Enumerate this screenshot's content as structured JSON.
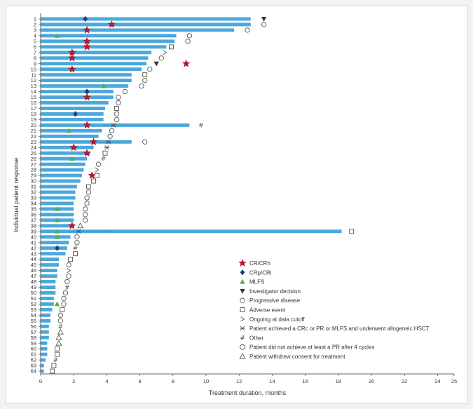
{
  "chart_data": {
    "type": "bar",
    "orientation": "horizontal",
    "xlabel": "Treatment duration, months",
    "ylabel": "Individual patient response",
    "xlim": [
      0,
      25
    ],
    "xticks": [
      0,
      2,
      4,
      6,
      8,
      10,
      12,
      14,
      16,
      18,
      20,
      22,
      24,
      25
    ],
    "patients": [
      "1",
      "2",
      "3",
      "4",
      "5",
      "6",
      "7",
      "8",
      "9",
      "10",
      "11",
      "12",
      "13",
      "14",
      "15",
      "16",
      "17",
      "18",
      "19",
      "20",
      "21",
      "22",
      "23",
      "24",
      "25",
      "26",
      "27",
      "28",
      "29",
      "30",
      "31",
      "32",
      "33",
      "34",
      "35",
      "36",
      "37",
      "38",
      "39",
      "40",
      "41",
      "42",
      "43",
      "44",
      "45",
      "46",
      "47",
      "48",
      "49",
      "50",
      "51",
      "52",
      "53",
      "54",
      "55",
      "56",
      "57",
      "58",
      "59",
      "60",
      "61",
      "62",
      "63",
      "64"
    ],
    "durations": [
      12.7,
      12.7,
      11.7,
      8.2,
      8.1,
      7.6,
      6.7,
      6.5,
      6.4,
      6.1,
      5.5,
      5.5,
      5.3,
      4.4,
      4.4,
      4.1,
      3.9,
      3.8,
      3.8,
      9.0,
      3.7,
      3.5,
      5.5,
      3.2,
      3.0,
      2.8,
      2.7,
      2.6,
      2.5,
      2.4,
      2.2,
      2.1,
      2.1,
      2.0,
      2.0,
      2.0,
      2.0,
      1.9,
      18.2,
      1.8,
      1.7,
      1.6,
      1.5,
      1.1,
      1.1,
      1.0,
      1.0,
      0.9,
      0.9,
      0.9,
      0.8,
      0.8,
      0.7,
      0.6,
      0.6,
      0.5,
      0.5,
      0.5,
      0.4,
      0.4,
      0.4,
      0.3,
      0.2,
      0.2
    ],
    "bar_color": "#4aa8dc",
    "hsct_extensions": [
      {
        "patient": 20,
        "from": 3.8,
        "to": 5.2
      },
      {
        "patient": 23,
        "from": 3.5,
        "to": 4.9
      },
      {
        "patient": 39,
        "from": 1.9,
        "to": 4.3
      }
    ],
    "markers": [
      {
        "patient": 1,
        "x": 2.7,
        "type": "crp_cri"
      },
      {
        "patient": 1,
        "x": 13.5,
        "type": "investigator_decision"
      },
      {
        "patient": 2,
        "x": 4.3,
        "type": "cr_crh"
      },
      {
        "patient": 2,
        "x": 13.5,
        "type": "progressive_disease"
      },
      {
        "patient": 3,
        "x": 2.8,
        "type": "cr_crh"
      },
      {
        "patient": 3,
        "x": 12.5,
        "type": "progressive_disease"
      },
      {
        "patient": 4,
        "x": 1.0,
        "type": "mlfs"
      },
      {
        "patient": 4,
        "x": 9.0,
        "type": "progressive_disease"
      },
      {
        "patient": 5,
        "x": 2.8,
        "type": "cr_crh"
      },
      {
        "patient": 5,
        "x": 8.9,
        "type": "progressive_disease"
      },
      {
        "patient": 6,
        "x": 2.8,
        "type": "cr_crh"
      },
      {
        "patient": 6,
        "x": 7.9,
        "type": "adverse_event"
      },
      {
        "patient": 7,
        "x": 1.9,
        "type": "cr_crh"
      },
      {
        "patient": 7,
        "x": 7.5,
        "type": "ongoing"
      },
      {
        "patient": 8,
        "x": 1.9,
        "type": "cr_crh"
      },
      {
        "patient": 8,
        "x": 7.3,
        "type": "progressive_disease"
      },
      {
        "patient": 9,
        "x": 8.8,
        "type": "cr_crh"
      },
      {
        "patient": 9,
        "x": 7.0,
        "type": "investigator_decision"
      },
      {
        "patient": 10,
        "x": 1.9,
        "type": "cr_crh"
      },
      {
        "patient": 10,
        "x": 6.6,
        "type": "progressive_disease"
      },
      {
        "patient": 11,
        "x": 6.3,
        "type": "adverse_event"
      },
      {
        "patient": 12,
        "x": 6.3,
        "type": "progressive_disease"
      },
      {
        "patient": 13,
        "x": 3.8,
        "type": "mlfs"
      },
      {
        "patient": 13,
        "x": 6.1,
        "type": "progressive_disease"
      },
      {
        "patient": 14,
        "x": 2.8,
        "type": "crp_cri"
      },
      {
        "patient": 14,
        "x": 5.1,
        "type": "progressive_disease"
      },
      {
        "patient": 15,
        "x": 2.8,
        "type": "cr_crh"
      },
      {
        "patient": 15,
        "x": 4.7,
        "type": "progressive_disease"
      },
      {
        "patient": 16,
        "x": 4.7,
        "type": "progressive_disease"
      },
      {
        "patient": 17,
        "x": 4.6,
        "type": "adverse_event"
      },
      {
        "patient": 18,
        "x": 2.1,
        "type": "crp_cri"
      },
      {
        "patient": 18,
        "x": 4.6,
        "type": "progressive_disease"
      },
      {
        "patient": 19,
        "x": 4.6,
        "type": "progressive_disease"
      },
      {
        "patient": 20,
        "x": 2.8,
        "type": "cr_crh"
      },
      {
        "patient": 20,
        "x": 4.4,
        "type": "hsct"
      },
      {
        "patient": 20,
        "x": 9.7,
        "type": "other"
      },
      {
        "patient": 21,
        "x": 1.7,
        "type": "mlfs"
      },
      {
        "patient": 21,
        "x": 4.3,
        "type": "progressive_disease"
      },
      {
        "patient": 22,
        "x": 4.2,
        "type": "progressive_disease"
      },
      {
        "patient": 23,
        "x": 3.2,
        "type": "cr_crh"
      },
      {
        "patient": 23,
        "x": 4.1,
        "type": "hsct"
      },
      {
        "patient": 23,
        "x": 6.3,
        "type": "progressive_disease"
      },
      {
        "patient": 24,
        "x": 2.0,
        "type": "cr_crh"
      },
      {
        "patient": 24,
        "x": 4.0,
        "type": "hsct"
      },
      {
        "patient": 25,
        "x": 2.8,
        "type": "cr_crh"
      },
      {
        "patient": 25,
        "x": 3.9,
        "type": "adverse_event"
      },
      {
        "patient": 26,
        "x": 1.9,
        "type": "mlfs"
      },
      {
        "patient": 26,
        "x": 3.8,
        "type": "other"
      },
      {
        "patient": 27,
        "x": 3.5,
        "type": "progressive_disease"
      },
      {
        "patient": 28,
        "x": 3.4,
        "type": "ongoing"
      },
      {
        "patient": 29,
        "x": 3.1,
        "type": "cr_crh"
      },
      {
        "patient": 29,
        "x": 3.4,
        "type": "adverse_event"
      },
      {
        "patient": 30,
        "x": 3.2,
        "type": "adverse_event"
      },
      {
        "patient": 31,
        "x": 2.9,
        "type": "adverse_event"
      },
      {
        "patient": 32,
        "x": 2.9,
        "type": "progressive_disease"
      },
      {
        "patient": 33,
        "x": 2.8,
        "type": "progressive_disease"
      },
      {
        "patient": 34,
        "x": 2.8,
        "type": "progressive_disease"
      },
      {
        "patient": 35,
        "x": 1.0,
        "type": "mlfs"
      },
      {
        "patient": 35,
        "x": 2.7,
        "type": "progressive_disease"
      },
      {
        "patient": 36,
        "x": 2.7,
        "type": "progressive_disease"
      },
      {
        "patient": 37,
        "x": 1.0,
        "type": "mlfs"
      },
      {
        "patient": 37,
        "x": 2.7,
        "type": "progressive_disease"
      },
      {
        "patient": 38,
        "x": 1.9,
        "type": "cr_crh"
      },
      {
        "patient": 38,
        "x": 2.4,
        "type": "withdrew_consent"
      },
      {
        "patient": 39,
        "x": 1.0,
        "type": "mlfs"
      },
      {
        "patient": 39,
        "x": 2.3,
        "type": "hsct"
      },
      {
        "patient": 39,
        "x": 18.8,
        "type": "adverse_event"
      },
      {
        "patient": 40,
        "x": 1.0,
        "type": "mlfs"
      },
      {
        "patient": 40,
        "x": 2.2,
        "type": "progressive_disease"
      },
      {
        "patient": 41,
        "x": 2.2,
        "type": "progressive_disease"
      },
      {
        "patient": 42,
        "x": 1.0,
        "type": "crp_cri"
      },
      {
        "patient": 42,
        "x": 2.1,
        "type": "other"
      },
      {
        "patient": 43,
        "x": 2.1,
        "type": "adverse_event"
      },
      {
        "patient": 44,
        "x": 1.8,
        "type": "adverse_event"
      },
      {
        "patient": 45,
        "x": 1.7,
        "type": "progressive_disease"
      },
      {
        "patient": 46,
        "x": 1.7,
        "type": "ongoing"
      },
      {
        "patient": 47,
        "x": 1.7,
        "type": "progressive_disease"
      },
      {
        "patient": 48,
        "x": 1.6,
        "type": "progressive_disease"
      },
      {
        "patient": 49,
        "x": 1.6,
        "type": "other"
      },
      {
        "patient": 50,
        "x": 1.5,
        "type": "progressive_disease"
      },
      {
        "patient": 51,
        "x": 1.4,
        "type": "progressive_disease"
      },
      {
        "patient": 52,
        "x": 1.0,
        "type": "mlfs"
      },
      {
        "patient": 52,
        "x": 1.4,
        "type": "progressive_disease"
      },
      {
        "patient": 53,
        "x": 1.3,
        "type": "adverse_event"
      },
      {
        "patient": 54,
        "x": 1.2,
        "type": "progressive_disease"
      },
      {
        "patient": 55,
        "x": 1.2,
        "type": "progressive_disease"
      },
      {
        "patient": 56,
        "x": 1.2,
        "type": "other"
      },
      {
        "patient": 57,
        "x": 1.2,
        "type": "withdrew_consent"
      },
      {
        "patient": 58,
        "x": 1.1,
        "type": "withdrew_consent"
      },
      {
        "patient": 59,
        "x": 1.1,
        "type": "withdrew_consent"
      },
      {
        "patient": 60,
        "x": 1.0,
        "type": "adverse_event"
      },
      {
        "patient": 61,
        "x": 1.0,
        "type": "adverse_event"
      },
      {
        "patient": 62,
        "x": 0.9,
        "type": "other"
      },
      {
        "patient": 63,
        "x": 0.8,
        "type": "adverse_event"
      },
      {
        "patient": 64,
        "x": 0.7,
        "type": "adverse_event"
      }
    ],
    "legend_position": "bottom-right inside plot",
    "legend": [
      {
        "key": "cr_crh",
        "label": "CR/CRh",
        "color": "#b5172f"
      },
      {
        "key": "crp_cri",
        "label": "CRp/CRi",
        "color": "#1f3d7a"
      },
      {
        "key": "mlfs",
        "label": "MLFS",
        "color": "#56b047"
      },
      {
        "key": "investigator_decision",
        "label": "Investigator decision",
        "color": "#2e3440"
      },
      {
        "key": "progressive_disease",
        "label": "Progressive disease",
        "color": "#555555"
      },
      {
        "key": "adverse_event",
        "label": "Adverse event",
        "color": "#555555"
      },
      {
        "key": "ongoing",
        "label": "Ongoing at data cutoff",
        "color": "#555555"
      },
      {
        "key": "hsct",
        "label": "Patient achieved a CRc or PR or MLFS and underwent allogeneic HSCT",
        "color": "#555555"
      },
      {
        "key": "other",
        "label": "Other",
        "color": "#555555"
      },
      {
        "key": "no_pr",
        "label": "Patient did not achieve at least a PR after 4 cycles",
        "color": "#555555"
      },
      {
        "key": "withdrew_consent",
        "label": "Patient withdrew consent for treatment",
        "color": "#555555"
      }
    ]
  }
}
